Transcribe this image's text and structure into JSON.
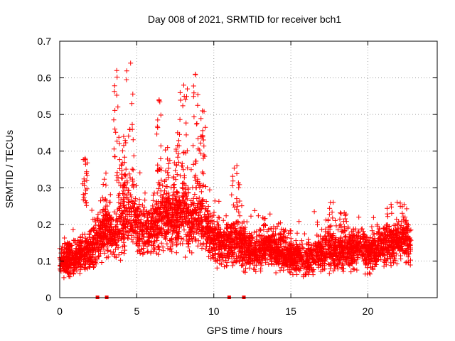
{
  "chart_data": {
    "type": "scatter",
    "title": "Day 008 of 2021, SRMTID for receiver bch1",
    "xlabel": "GPS time / hours",
    "ylabel": "SRMTID / TECUs",
    "xlim": [
      0,
      24.5
    ],
    "ylim": [
      0,
      0.7
    ],
    "xticks": [
      0,
      5,
      10,
      15,
      20
    ],
    "yticks": [
      0,
      0.1,
      0.2,
      0.3,
      0.4,
      0.5,
      0.6,
      0.7
    ],
    "xtick_labels": [
      "0",
      "5",
      "10",
      "15",
      "20"
    ],
    "ytick_labels": [
      "0",
      "0.1",
      "0.2",
      "0.3",
      "0.4",
      "0.5",
      "0.6",
      "0.7"
    ],
    "grid": true,
    "marker": "plus",
    "color": "#ff0000",
    "data_extent_hours": [
      0,
      22.8
    ],
    "point_count": 4200,
    "envelope": {
      "x": [
        0,
        1,
        2,
        2.5,
        3,
        3.5,
        4,
        4.5,
        5,
        5.5,
        6,
        6.5,
        7,
        7.5,
        8,
        8.5,
        9,
        9.5,
        10,
        10.5,
        11,
        11.5,
        12,
        12.5,
        13,
        13.5,
        14,
        14.5,
        15,
        15.5,
        16,
        16.5,
        17,
        17.5,
        18,
        18.5,
        19,
        19.5,
        20,
        20.5,
        21,
        21.5,
        22,
        22.5,
        22.8
      ],
      "y": [
        0.095,
        0.11,
        0.13,
        0.16,
        0.19,
        0.17,
        0.21,
        0.23,
        0.2,
        0.18,
        0.19,
        0.21,
        0.22,
        0.21,
        0.23,
        0.2,
        0.22,
        0.2,
        0.16,
        0.14,
        0.15,
        0.16,
        0.14,
        0.12,
        0.13,
        0.14,
        0.12,
        0.13,
        0.11,
        0.11,
        0.1,
        0.11,
        0.12,
        0.13,
        0.12,
        0.13,
        0.13,
        0.14,
        0.12,
        0.13,
        0.14,
        0.15,
        0.15,
        0.16,
        0.12
      ],
      "spread": [
        0.03,
        0.035,
        0.045,
        0.05,
        0.055,
        0.05,
        0.065,
        0.07,
        0.06,
        0.06,
        0.06,
        0.065,
        0.07,
        0.065,
        0.07,
        0.065,
        0.07,
        0.06,
        0.05,
        0.045,
        0.045,
        0.05,
        0.045,
        0.04,
        0.04,
        0.04,
        0.04,
        0.04,
        0.035,
        0.035,
        0.035,
        0.035,
        0.04,
        0.04,
        0.04,
        0.04,
        0.04,
        0.04,
        0.04,
        0.04,
        0.04,
        0.04,
        0.04,
        0.045,
        0.035
      ]
    },
    "spikes": [
      {
        "x": [
          0.3,
          0.7
        ],
        "y": [
          0.12,
          0.15
        ]
      },
      {
        "x": [
          1.5,
          1.8
        ],
        "y": [
          0.25,
          0.38
        ]
      },
      {
        "x": [
          2.6,
          3.4
        ],
        "y": [
          0.2,
          0.34
        ]
      },
      {
        "x": [
          3.5,
          3.9
        ],
        "y": [
          0.3,
          0.62
        ]
      },
      {
        "x": [
          4.0,
          4.3
        ],
        "y": [
          0.3,
          0.44
        ]
      },
      {
        "x": [
          4.3,
          4.9
        ],
        "y": [
          0.3,
          0.64
        ]
      },
      {
        "x": [
          6.3,
          6.6
        ],
        "y": [
          0.28,
          0.54
        ]
      },
      {
        "x": [
          6.8,
          7.2
        ],
        "y": [
          0.22,
          0.41
        ]
      },
      {
        "x": [
          7.5,
          7.8
        ],
        "y": [
          0.25,
          0.45
        ]
      },
      {
        "x": [
          7.8,
          8.3
        ],
        "y": [
          0.3,
          0.58
        ]
      },
      {
        "x": [
          8.6,
          9.0
        ],
        "y": [
          0.3,
          0.61
        ]
      },
      {
        "x": [
          9.0,
          9.5
        ],
        "y": [
          0.3,
          0.51
        ]
      },
      {
        "x": [
          11.1,
          11.9
        ],
        "y": [
          0.2,
          0.36
        ]
      },
      {
        "x": [
          16.5,
          19.0
        ],
        "y": [
          0.18,
          0.26
        ]
      },
      {
        "x": [
          21.0,
          22.8
        ],
        "y": [
          0.18,
          0.26
        ]
      }
    ],
    "gap_markers_hours": [
      2.45,
      3.05,
      11.0,
      11.95
    ]
  }
}
